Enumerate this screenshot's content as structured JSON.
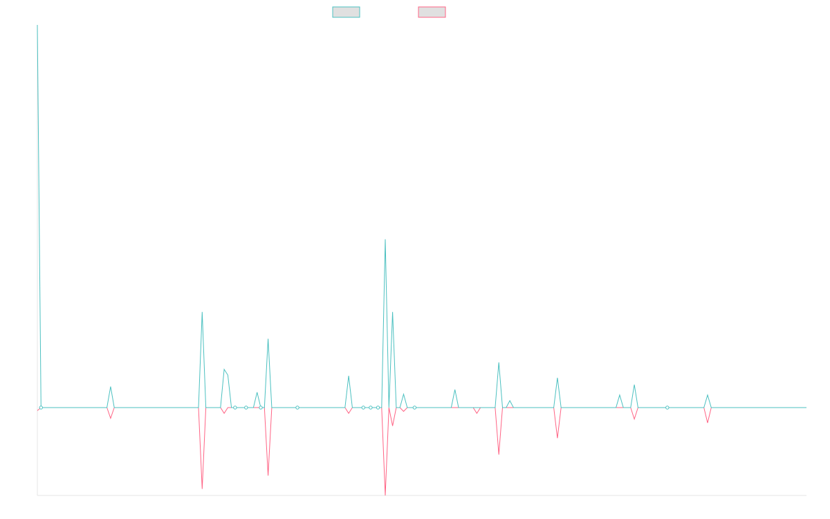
{
  "chart_data": {
    "type": "line",
    "title": "",
    "xlabel": "",
    "ylabel": "",
    "grid": false,
    "legend_position": "top-center",
    "x_count": 211,
    "ylim": [
      -0.23,
      1.0
    ],
    "series": [
      {
        "name": "",
        "color": "#4bc0c0",
        "fill": "#e0e0e0",
        "points": [
          [
            0,
            1.0
          ],
          [
            1,
            0.0
          ],
          [
            19,
            0.0
          ],
          [
            20,
            0.055
          ],
          [
            21,
            0.0
          ],
          [
            44,
            0.0
          ],
          [
            45,
            0.25
          ],
          [
            46,
            0.0
          ],
          [
            47,
            0.0
          ],
          [
            50,
            0.0
          ],
          [
            51,
            0.1
          ],
          [
            52,
            0.085
          ],
          [
            53,
            0.0
          ],
          [
            54,
            0.0
          ],
          [
            55,
            0.0
          ],
          [
            57,
            0.0
          ],
          [
            58,
            0.0
          ],
          [
            59,
            0.0
          ],
          [
            60,
            0.04
          ],
          [
            61,
            0.0
          ],
          [
            62,
            0.0
          ],
          [
            63,
            0.18
          ],
          [
            64,
            0.0
          ],
          [
            65,
            0.0
          ],
          [
            70,
            0.0
          ],
          [
            71,
            0.0
          ],
          [
            84,
            0.0
          ],
          [
            85,
            0.083
          ],
          [
            86,
            0.0
          ],
          [
            88,
            0.0
          ],
          [
            89,
            0.0
          ],
          [
            91,
            0.0
          ],
          [
            92,
            0.0
          ],
          [
            93,
            0.0
          ],
          [
            94,
            0.0
          ],
          [
            95,
            0.44
          ],
          [
            96,
            0.0
          ],
          [
            97,
            0.25
          ],
          [
            98,
            0.0
          ],
          [
            99,
            0.0
          ],
          [
            100,
            0.035
          ],
          [
            101,
            0.0
          ],
          [
            103,
            0.0
          ],
          [
            113,
            0.0
          ],
          [
            114,
            0.047
          ],
          [
            115,
            0.0
          ],
          [
            119,
            0.0
          ],
          [
            120,
            0.0
          ],
          [
            121,
            0.0
          ],
          [
            125,
            0.0
          ],
          [
            126,
            0.118
          ],
          [
            127,
            0.0
          ],
          [
            128,
            0.0
          ],
          [
            129,
            0.018
          ],
          [
            130,
            0.0
          ],
          [
            141,
            0.0
          ],
          [
            142,
            0.078
          ],
          [
            143,
            0.0
          ],
          [
            158,
            0.0
          ],
          [
            159,
            0.033
          ],
          [
            160,
            0.0
          ],
          [
            162,
            0.0
          ],
          [
            163,
            0.06
          ],
          [
            164,
            0.0
          ],
          [
            172,
            0.0
          ],
          [
            182,
            0.0
          ],
          [
            183,
            0.033
          ],
          [
            184,
            0.0
          ],
          [
            210,
            0.0
          ]
        ]
      },
      {
        "name": "",
        "color": "#ff6384",
        "fill": "#e0e0e0",
        "points": [
          [
            0,
            -0.008
          ],
          [
            1,
            0.0
          ],
          [
            19,
            0.0
          ],
          [
            20,
            -0.028
          ],
          [
            21,
            0.0
          ],
          [
            44,
            0.0
          ],
          [
            45,
            -0.213
          ],
          [
            46,
            0.0
          ],
          [
            50,
            0.0
          ],
          [
            51,
            -0.015
          ],
          [
            52,
            0.0
          ],
          [
            62,
            0.0
          ],
          [
            63,
            -0.178
          ],
          [
            64,
            0.0
          ],
          [
            84,
            0.0
          ],
          [
            85,
            -0.015
          ],
          [
            86,
            0.0
          ],
          [
            94,
            0.0
          ],
          [
            95,
            -0.23
          ],
          [
            96,
            0.0
          ],
          [
            97,
            -0.048
          ],
          [
            98,
            0.0
          ],
          [
            99,
            0.0
          ],
          [
            100,
            -0.01
          ],
          [
            101,
            0.0
          ],
          [
            119,
            0.0
          ],
          [
            120,
            -0.015
          ],
          [
            121,
            0.0
          ],
          [
            125,
            0.0
          ],
          [
            126,
            -0.123
          ],
          [
            127,
            0.0
          ],
          [
            141,
            0.0
          ],
          [
            142,
            -0.08
          ],
          [
            143,
            0.0
          ],
          [
            162,
            0.0
          ],
          [
            163,
            -0.03
          ],
          [
            164,
            0.0
          ],
          [
            182,
            0.0
          ],
          [
            183,
            -0.04
          ],
          [
            184,
            0.0
          ],
          [
            210,
            0.0
          ]
        ]
      }
    ]
  }
}
